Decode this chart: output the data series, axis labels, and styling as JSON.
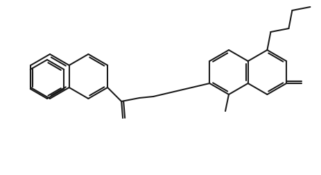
{
  "bg_color": "#ffffff",
  "line_color": "#1a1a1a",
  "lw": 1.5,
  "fig_w": 4.63,
  "fig_h": 2.52,
  "dpi": 100
}
